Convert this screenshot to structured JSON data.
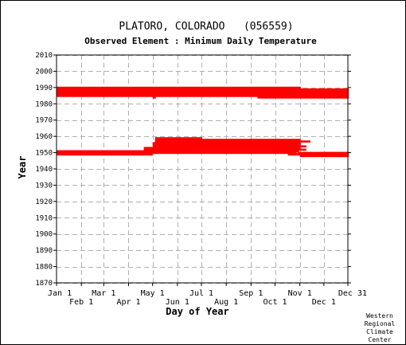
{
  "chart_data": {
    "type": "heatmap",
    "title": "PLATORO, COLORADO   (056559)",
    "subtitle": "Observed Element : Minimum Daily Temperature",
    "xlabel": "Day of Year",
    "ylabel": "Year",
    "xlim": [
      1,
      365
    ],
    "ylim": [
      1870,
      2010
    ],
    "y_ticks": [
      1870,
      1880,
      1890,
      1900,
      1910,
      1920,
      1930,
      1940,
      1950,
      1960,
      1970,
      1980,
      1990,
      2000,
      2010
    ],
    "x_ticks_top_row": [
      {
        "label": "Jan 1",
        "day": 1
      },
      {
        "label": "Mar 1",
        "day": 60
      },
      {
        "label": "May 1",
        "day": 121
      },
      {
        "label": "Jul 1",
        "day": 182
      },
      {
        "label": "Sep 1",
        "day": 244
      },
      {
        "label": "Nov 1",
        "day": 305
      },
      {
        "label": "Dec 31",
        "day": 365
      }
    ],
    "x_ticks_bottom_row": [
      {
        "label": "Feb 1",
        "day": 32
      },
      {
        "label": "Apr 1",
        "day": 91
      },
      {
        "label": "Jun 1",
        "day": 152
      },
      {
        "label": "Aug 1",
        "day": 213
      },
      {
        "label": "Oct 1",
        "day": 274
      },
      {
        "label": "Dec 1",
        "day": 335
      }
    ],
    "grid": true,
    "mark_color": "#ff0000",
    "records": [
      {
        "year": 1948,
        "day_start": 305,
        "day_end": 365
      },
      {
        "year": 1949,
        "day_start": 1,
        "day_end": 120
      },
      {
        "year": 1949,
        "day_start": 290,
        "day_end": 365
      },
      {
        "year": 1950,
        "day_start": 1,
        "day_end": 300
      },
      {
        "year": 1950,
        "day_start": 302,
        "day_end": 365
      },
      {
        "year": 1951,
        "day_start": 1,
        "day_end": 303
      },
      {
        "year": 1952,
        "day_start": 110,
        "day_end": 312
      },
      {
        "year": 1953,
        "day_start": 110,
        "day_end": 305
      },
      {
        "year": 1954,
        "day_start": 121,
        "day_end": 312
      },
      {
        "year": 1955,
        "day_start": 121,
        "day_end": 305
      },
      {
        "year": 1956,
        "day_start": 121,
        "day_end": 305
      },
      {
        "year": 1957,
        "day_start": 124,
        "day_end": 317
      },
      {
        "year": 1958,
        "day_start": 124,
        "day_end": 305
      },
      {
        "year": 1959,
        "day_start": 124,
        "day_end": 182
      },
      {
        "year": 1984,
        "day_start": 121,
        "day_end": 124
      },
      {
        "year": 1984,
        "day_start": 252,
        "day_end": 365
      },
      {
        "year": 1985,
        "day_start": 1,
        "day_end": 365
      },
      {
        "year": 1986,
        "day_start": 1,
        "day_end": 365
      },
      {
        "year": 1987,
        "day_start": 1,
        "day_end": 365
      },
      {
        "year": 1988,
        "day_start": 1,
        "day_end": 365
      },
      {
        "year": 1989,
        "day_start": 1,
        "day_end": 365
      },
      {
        "year": 1990,
        "day_start": 1,
        "day_end": 305
      }
    ],
    "credit": [
      "Western",
      "Regional",
      "Climate",
      "Center"
    ]
  }
}
